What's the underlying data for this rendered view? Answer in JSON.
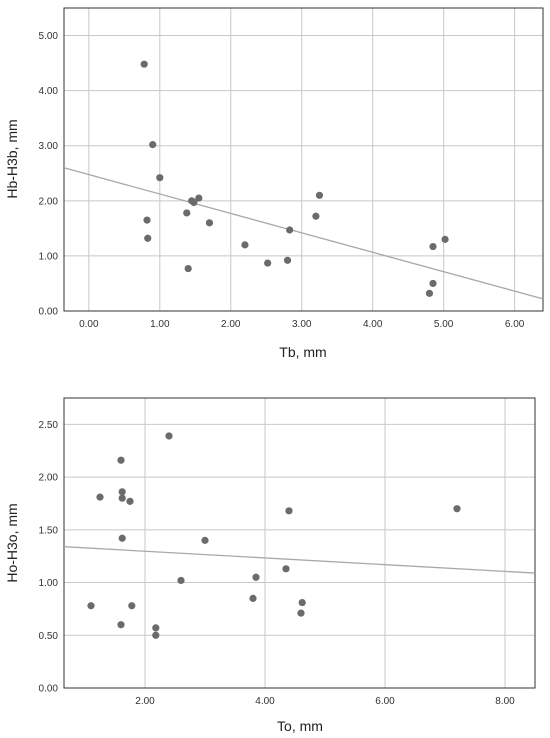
{
  "chart_data": [
    {
      "type": "scatter",
      "title": "",
      "xlabel": "Tb, mm",
      "ylabel": "Hb-H3b, mm",
      "xlim": [
        -0.35,
        6.4
      ],
      "ylim": [
        0,
        5.5
      ],
      "xticks": [
        "0.00",
        "1.00",
        "2.00",
        "3.00",
        "4.00",
        "5.00",
        "6.00"
      ],
      "yticks": [
        "0.00",
        "1.00",
        "2.00",
        "3.00",
        "4.00",
        "5.00"
      ],
      "grid": true,
      "fit_line": {
        "x": [
          -0.35,
          6.4
        ],
        "y": [
          2.6,
          0.22
        ]
      },
      "points": [
        {
          "x": 0.78,
          "y": 4.48
        },
        {
          "x": 0.9,
          "y": 3.02
        },
        {
          "x": 1.0,
          "y": 2.42
        },
        {
          "x": 0.82,
          "y": 1.65
        },
        {
          "x": 0.83,
          "y": 1.32
        },
        {
          "x": 1.38,
          "y": 1.78
        },
        {
          "x": 1.45,
          "y": 2.0
        },
        {
          "x": 1.48,
          "y": 1.97
        },
        {
          "x": 1.55,
          "y": 2.05
        },
        {
          "x": 1.7,
          "y": 1.6
        },
        {
          "x": 1.4,
          "y": 0.77
        },
        {
          "x": 2.2,
          "y": 1.2
        },
        {
          "x": 2.52,
          "y": 0.87
        },
        {
          "x": 2.8,
          "y": 0.92
        },
        {
          "x": 2.83,
          "y": 1.47
        },
        {
          "x": 3.2,
          "y": 1.72
        },
        {
          "x": 3.25,
          "y": 2.1
        },
        {
          "x": 4.85,
          "y": 1.17
        },
        {
          "x": 5.02,
          "y": 1.3
        },
        {
          "x": 4.85,
          "y": 0.5
        },
        {
          "x": 4.8,
          "y": 0.32
        }
      ]
    },
    {
      "type": "scatter",
      "title": "",
      "xlabel": "To, mm",
      "ylabel": "Ho-H3o, mm",
      "xlim": [
        0.65,
        8.5
      ],
      "ylim": [
        0,
        2.75
      ],
      "xticks": [
        "2.00",
        "4.00",
        "6.00",
        "8.00"
      ],
      "yticks": [
        "0.00",
        "0.50",
        "1.00",
        "1.50",
        "2.00",
        "2.50"
      ],
      "grid": true,
      "fit_line": {
        "x": [
          0.65,
          8.5
        ],
        "y": [
          1.34,
          1.09
        ]
      },
      "points": [
        {
          "x": 1.1,
          "y": 0.78
        },
        {
          "x": 1.25,
          "y": 1.81
        },
        {
          "x": 1.6,
          "y": 2.16
        },
        {
          "x": 1.62,
          "y": 1.86
        },
        {
          "x": 1.62,
          "y": 1.8
        },
        {
          "x": 1.75,
          "y": 1.77
        },
        {
          "x": 1.62,
          "y": 1.42
        },
        {
          "x": 1.6,
          "y": 0.6
        },
        {
          "x": 1.78,
          "y": 0.78
        },
        {
          "x": 2.18,
          "y": 0.57
        },
        {
          "x": 2.18,
          "y": 0.5
        },
        {
          "x": 2.4,
          "y": 2.39
        },
        {
          "x": 2.6,
          "y": 1.02
        },
        {
          "x": 3.0,
          "y": 1.4
        },
        {
          "x": 3.8,
          "y": 0.85
        },
        {
          "x": 3.85,
          "y": 1.05
        },
        {
          "x": 4.35,
          "y": 1.13
        },
        {
          "x": 4.4,
          "y": 1.68
        },
        {
          "x": 4.6,
          "y": 0.71
        },
        {
          "x": 4.62,
          "y": 0.81
        },
        {
          "x": 7.2,
          "y": 1.7
        }
      ]
    }
  ]
}
